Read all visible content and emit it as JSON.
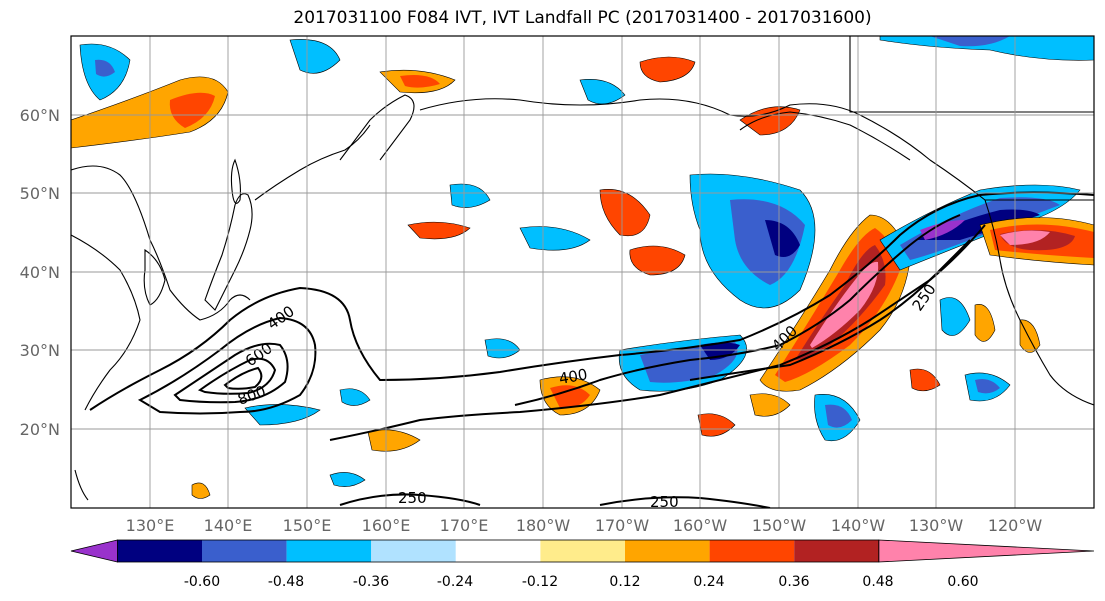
{
  "title": "2017031100 F084 IVT, IVT Landfall PC (2017031400 - 2017031600)",
  "map": {
    "lat_labels": [
      "60°N",
      "50°N",
      "40°N",
      "30°N",
      "20°N"
    ],
    "lon_labels": [
      "130°E",
      "140°E",
      "150°E",
      "160°E",
      "170°E",
      "180°W",
      "170°W",
      "160°W",
      "150°W",
      "140°W",
      "130°W",
      "120°W"
    ],
    "contour_labels": [
      "400",
      "600",
      "800",
      "400",
      "400",
      "250",
      "250",
      "250"
    ],
    "colors": {
      "neg_060": "#9932cc",
      "neg_048": "#000080",
      "neg_036": "#3a5fcd",
      "neg_024": "#00bfff",
      "neg_012": "#b0e2ff",
      "pos_012": "#ffec8b",
      "pos_024": "#ffa500",
      "pos_036": "#ff4500",
      "pos_048": "#b22222",
      "pos_060": "#ff82ab"
    }
  },
  "colorbar": {
    "levels": [
      "-0.60",
      "-0.48",
      "-0.36",
      "-0.24",
      "-0.12",
      "0.12",
      "0.24",
      "0.36",
      "0.48",
      "0.60"
    ],
    "colors": [
      "#9932cc",
      "#000080",
      "#3a5fcd",
      "#00bfff",
      "#b0e2ff",
      "#ffffff",
      "#ffec8b",
      "#ffa500",
      "#ff4500",
      "#b22222",
      "#ff82ab"
    ]
  }
}
